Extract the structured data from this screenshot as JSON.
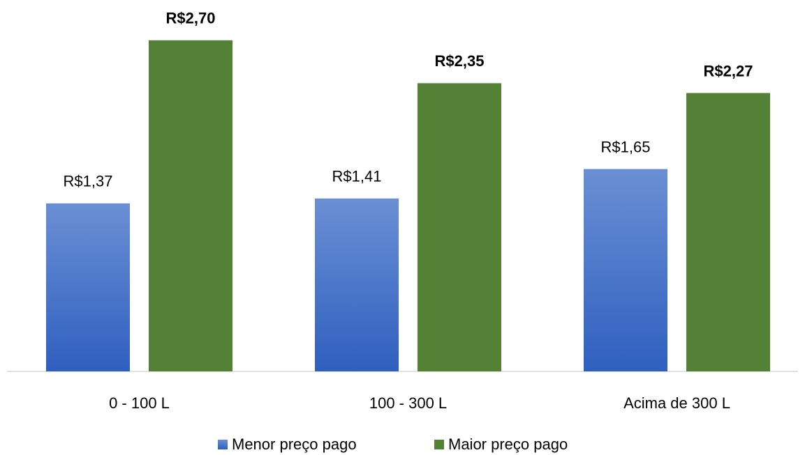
{
  "chart_data": {
    "type": "bar",
    "categories": [
      "0 - 100 L",
      "100 - 300 L",
      "Acima de 300 L"
    ],
    "series": [
      {
        "name": "Menor preço pago",
        "color": "#4472c4",
        "values": [
          1.37,
          1.41,
          1.65
        ],
        "value_labels": [
          "R$1,37",
          "R$1,41",
          "R$1,65"
        ]
      },
      {
        "name": "Maior preço pago",
        "color": "#538135",
        "values": [
          2.7,
          2.35,
          2.27
        ],
        "value_labels": [
          "R$2,70",
          "R$2,35",
          "R$2,27"
        ]
      }
    ],
    "legend": "bottom"
  }
}
